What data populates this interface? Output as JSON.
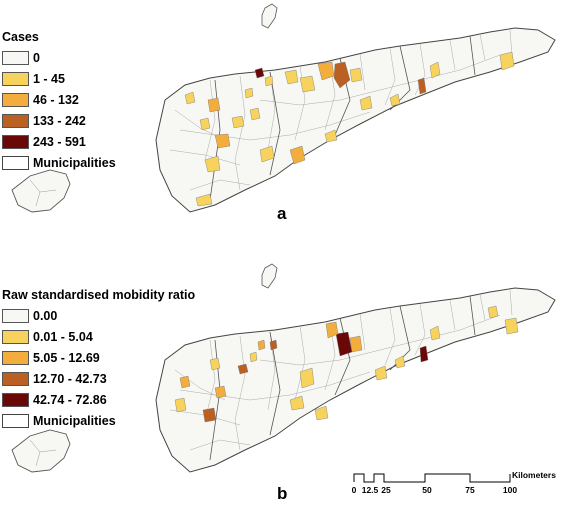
{
  "panel_a": {
    "label": "a",
    "legend_title": "Cases",
    "legend": [
      {
        "label": "0",
        "color": "#f7f7f4"
      },
      {
        "label": "1 - 45",
        "color": "#f7d35e"
      },
      {
        "label": "46 - 132",
        "color": "#f2ad3c"
      },
      {
        "label": "133 - 242",
        "color": "#b96022"
      },
      {
        "label": "243 - 591",
        "color": "#6a0707"
      }
    ],
    "municipalities_label": "Municipalities"
  },
  "panel_b": {
    "label": "b",
    "legend_title": "Raw standardised mobidity ratio",
    "legend": [
      {
        "label": "0.00",
        "color": "#f7f7f4"
      },
      {
        "label": "0.01 - 5.04",
        "color": "#f7d35e"
      },
      {
        "label": "5.05 - 12.69",
        "color": "#f2ad3c"
      },
      {
        "label": "12.70 - 42.73",
        "color": "#b96022"
      },
      {
        "label": "42.74 - 72.86",
        "color": "#6a0707"
      }
    ],
    "municipalities_label": "Municipalities"
  },
  "scale_bar": {
    "unit": "Kilometers",
    "ticks": [
      "0",
      "12.5",
      "25",
      "50",
      "75",
      "100"
    ]
  }
}
